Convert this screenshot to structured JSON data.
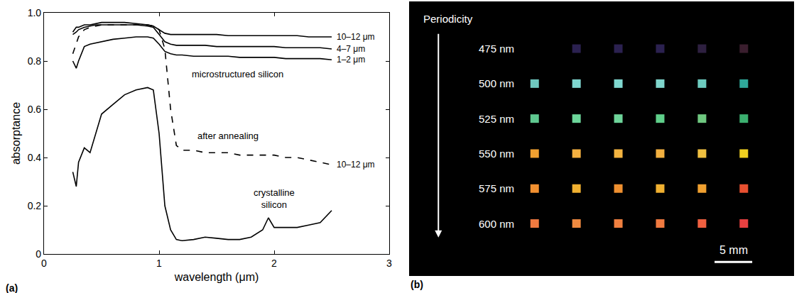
{
  "chart_data": [
    {
      "type": "line",
      "panel": "(a)",
      "x_label": "wavelength (μm)",
      "y_label": "absorptance",
      "xlim": [
        0,
        3
      ],
      "xticks": [
        0,
        1,
        2,
        3
      ],
      "ylim": [
        0,
        1
      ],
      "yticks": [
        0,
        0.2,
        0.4,
        0.6,
        0.8,
        {
          "value": 1,
          "label": "1.0"
        }
      ],
      "grid": false,
      "x": [
        0.25,
        0.28,
        0.3,
        0.35,
        0.4,
        0.45,
        0.5,
        0.6,
        0.7,
        0.8,
        0.9,
        0.95,
        1.0,
        1.05,
        1.1,
        1.15,
        1.2,
        1.3,
        1.4,
        1.5,
        1.6,
        1.7,
        1.8,
        1.9,
        1.95,
        2.0,
        2.1,
        2.2,
        2.3,
        2.4,
        2.5
      ],
      "series": [
        {
          "name": "10–12 μm",
          "color": "#000000",
          "line_style": "solid",
          "values": [
            0.92,
            0.94,
            0.94,
            0.95,
            0.95,
            0.955,
            0.96,
            0.96,
            0.96,
            0.955,
            0.95,
            0.945,
            0.93,
            0.915,
            0.91,
            0.91,
            0.91,
            0.91,
            0.91,
            0.91,
            0.905,
            0.905,
            0.905,
            0.905,
            0.905,
            0.905,
            0.905,
            0.905,
            0.9,
            0.9,
            0.9
          ]
        },
        {
          "name": "4–7 μm",
          "color": "#000000",
          "line_style": "solid",
          "values": [
            0.91,
            0.92,
            0.93,
            0.94,
            0.945,
            0.95,
            0.95,
            0.95,
            0.95,
            0.95,
            0.945,
            0.94,
            0.91,
            0.88,
            0.87,
            0.865,
            0.865,
            0.865,
            0.865,
            0.86,
            0.86,
            0.86,
            0.86,
            0.86,
            0.86,
            0.86,
            0.855,
            0.855,
            0.855,
            0.855,
            0.85
          ]
        },
        {
          "name": "1–2 μm",
          "color": "#000000",
          "line_style": "solid",
          "values": [
            0.8,
            0.77,
            0.8,
            0.86,
            0.87,
            0.875,
            0.88,
            0.89,
            0.895,
            0.9,
            0.9,
            0.895,
            0.87,
            0.84,
            0.83,
            0.825,
            0.825,
            0.82,
            0.82,
            0.82,
            0.82,
            0.815,
            0.815,
            0.815,
            0.815,
            0.815,
            0.81,
            0.81,
            0.81,
            0.81,
            0.805
          ]
        },
        {
          "name": "10–12 μm",
          "color": "#000000",
          "line_style": "dashed",
          "values": [
            0.83,
            0.87,
            0.9,
            0.93,
            0.94,
            0.945,
            0.95,
            0.95,
            0.95,
            0.95,
            0.95,
            0.945,
            0.93,
            0.85,
            0.6,
            0.45,
            0.43,
            0.43,
            0.42,
            0.42,
            0.42,
            0.41,
            0.41,
            0.41,
            0.41,
            0.41,
            0.4,
            0.4,
            0.39,
            0.38,
            0.37
          ]
        },
        {
          "color": "#000000",
          "line_style": "solid",
          "values": [
            0.34,
            0.28,
            0.38,
            0.44,
            0.42,
            0.5,
            0.58,
            0.62,
            0.66,
            0.68,
            0.69,
            0.68,
            0.5,
            0.2,
            0.1,
            0.06,
            0.055,
            0.06,
            0.07,
            0.065,
            0.06,
            0.06,
            0.07,
            0.1,
            0.15,
            0.11,
            0.11,
            0.11,
            0.12,
            0.13,
            0.18
          ]
        }
      ],
      "annotations": [
        {
          "text": "microstructured silicon",
          "x": 1.68,
          "y": 0.745
        },
        {
          "text": "after annealing",
          "x": 1.6,
          "y": 0.49
        },
        {
          "text": "crystalline silicon",
          "x": 2.0,
          "y": 0.23
        }
      ]
    },
    {
      "type": "scatter",
      "panel": "(b)",
      "title": "Periodicity",
      "marker": "square",
      "tick_labels": false,
      "categories": [
        "475 nm",
        "500 nm",
        "525 nm",
        "550 nm",
        "575 nm",
        "600 nm"
      ],
      "colors": [
        [
          null,
          "#2b2150",
          "#2b2150",
          "#2b2150",
          "#2e2040",
          "#3a1e2e"
        ],
        [
          "#6fc9c0",
          "#7fd6cf",
          "#80d8d0",
          "#7fd5cc",
          "#6dccc0",
          "#2fa89a"
        ],
        [
          "#5fc890",
          "#6cd69a",
          "#6ed49a",
          "#5fcf8a",
          "#6fc880",
          "#3cb070"
        ],
        [
          "#f0a030",
          "#f5b040",
          "#f4b440",
          "#f2b040",
          "#f0c040",
          "#f0d020"
        ],
        [
          "#f29030",
          "#f0b030",
          "#ef9030",
          "#f0b030",
          "#f0a030",
          "#e85030"
        ],
        [
          "#f07a40",
          "#f08a40",
          "#f08040",
          "#f07a40",
          "#f06040",
          "#e84040"
        ]
      ],
      "scale_bar": "5 mm"
    }
  ]
}
